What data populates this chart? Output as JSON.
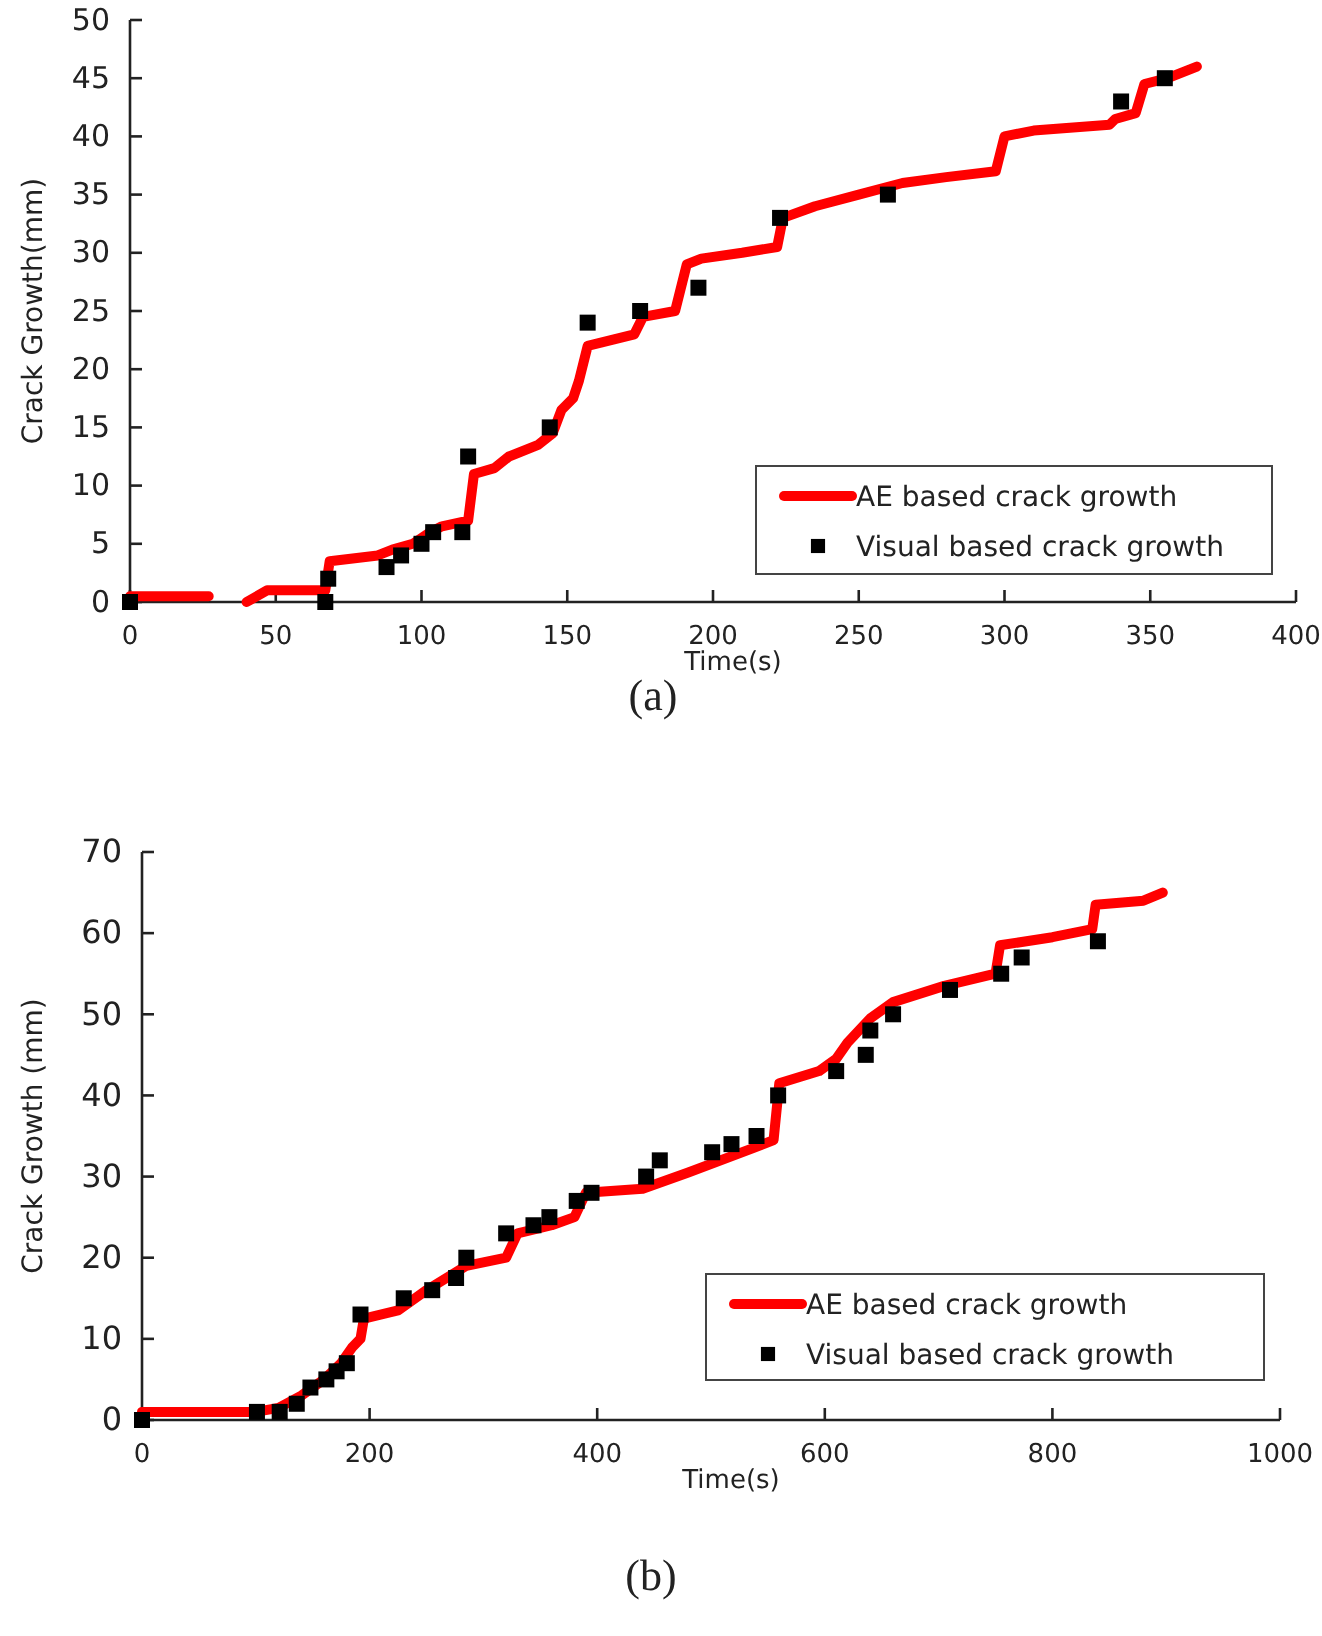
{
  "chart_data": [
    {
      "type": "line",
      "xlabel": "Time(s)",
      "ylabel": "Crack Growth(mm)",
      "xlim": [
        0,
        400
      ],
      "xticks": [
        0,
        50,
        100,
        150,
        200,
        250,
        300,
        350,
        400
      ],
      "ylim": [
        0,
        50
      ],
      "yticks": [
        0,
        5,
        10,
        15,
        20,
        25,
        30,
        35,
        40,
        45,
        50
      ],
      "grid": false,
      "legend": "bottom right",
      "annotations": [
        "(a)"
      ],
      "series": [
        {
          "name": "AE based crack growth",
          "color": "#ff0000",
          "marker": "none",
          "line_style": "solid",
          "x": [
            0,
            27,
            33,
            40,
            47,
            67,
            68.5,
            85,
            90,
            97,
            103,
            107,
            116,
            118,
            125,
            130,
            140,
            145,
            148,
            152,
            154,
            157,
            165,
            173,
            176,
            187,
            191,
            196,
            210,
            222,
            224,
            235,
            250,
            265,
            280,
            297,
            300,
            310,
            336,
            338,
            345,
            348,
            356,
            366
          ],
          "values": [
            0.5,
            0.5,
            null,
            0,
            1,
            1,
            3.5,
            4,
            4.5,
            5,
            6,
            6.5,
            7,
            11,
            11.5,
            12.5,
            13.5,
            14.5,
            16.5,
            17.5,
            19,
            22,
            22.5,
            23,
            24.5,
            25,
            29,
            29.5,
            30,
            30.5,
            33,
            34,
            35,
            36,
            36.5,
            37,
            40,
            40.5,
            41,
            41.5,
            42,
            44.5,
            45,
            46
          ]
        },
        {
          "name": "Visual based crack growth",
          "type": "scatter",
          "color": "#000000",
          "marker": "square",
          "x": [
            0,
            67,
            68,
            88,
            93,
            100,
            104,
            114,
            116,
            144,
            157,
            175,
            195,
            223,
            260,
            340,
            355
          ],
          "values": [
            0,
            0,
            2,
            3,
            4,
            5,
            6,
            6,
            12.5,
            15,
            24,
            25,
            27,
            33,
            35,
            43,
            45
          ]
        }
      ]
    },
    {
      "type": "line",
      "xlabel": "Time(s)",
      "ylabel": "Crack Growth (mm)",
      "xlim": [
        0,
        1000
      ],
      "xticks": [
        0,
        200,
        400,
        600,
        800,
        1000
      ],
      "ylim": [
        0,
        70
      ],
      "yticks": [
        0,
        10,
        20,
        30,
        40,
        50,
        60,
        70
      ],
      "grid": false,
      "legend": "bottom right",
      "annotations": [
        "(b)"
      ],
      "series": [
        {
          "name": "AE based crack growth",
          "color": "#ff0000",
          "marker": "none",
          "line_style": "solid",
          "x": [
            0,
            100,
            120,
            140,
            160,
            175,
            185,
            192,
            195,
            225,
            250,
            285,
            320,
            330,
            360,
            380,
            390,
            440,
            480,
            537,
            555,
            560,
            595,
            610,
            620,
            640,
            660,
            705,
            750,
            754,
            800,
            835,
            838,
            880,
            897
          ],
          "values": [
            1,
            1,
            1.5,
            3,
            5,
            7,
            9,
            10,
            12.5,
            13.5,
            16,
            19,
            20,
            23,
            24,
            25,
            28,
            28.5,
            30.5,
            33.5,
            34.5,
            41.5,
            43,
            44.5,
            46.5,
            49.5,
            51.5,
            53.5,
            55,
            58.5,
            59.5,
            60.5,
            63.5,
            64,
            65
          ]
        },
        {
          "name": "Visual based crack growth",
          "type": "scatter",
          "color": "#000000",
          "marker": "square",
          "x": [
            0,
            101,
            121,
            136,
            148,
            162,
            171,
            180,
            192,
            230,
            255,
            276,
            285,
            320,
            344,
            358,
            382,
            395,
            443,
            455,
            501,
            518,
            540,
            559,
            610,
            636,
            640,
            660,
            710,
            755,
            773,
            840
          ],
          "values": [
            0,
            1,
            1,
            2,
            4,
            5,
            6,
            7,
            13,
            15,
            16,
            17.5,
            20,
            23,
            24,
            25,
            27,
            28,
            30,
            32,
            33,
            34,
            35,
            40,
            43,
            45,
            48,
            50,
            53,
            55,
            57,
            59
          ]
        }
      ]
    }
  ]
}
